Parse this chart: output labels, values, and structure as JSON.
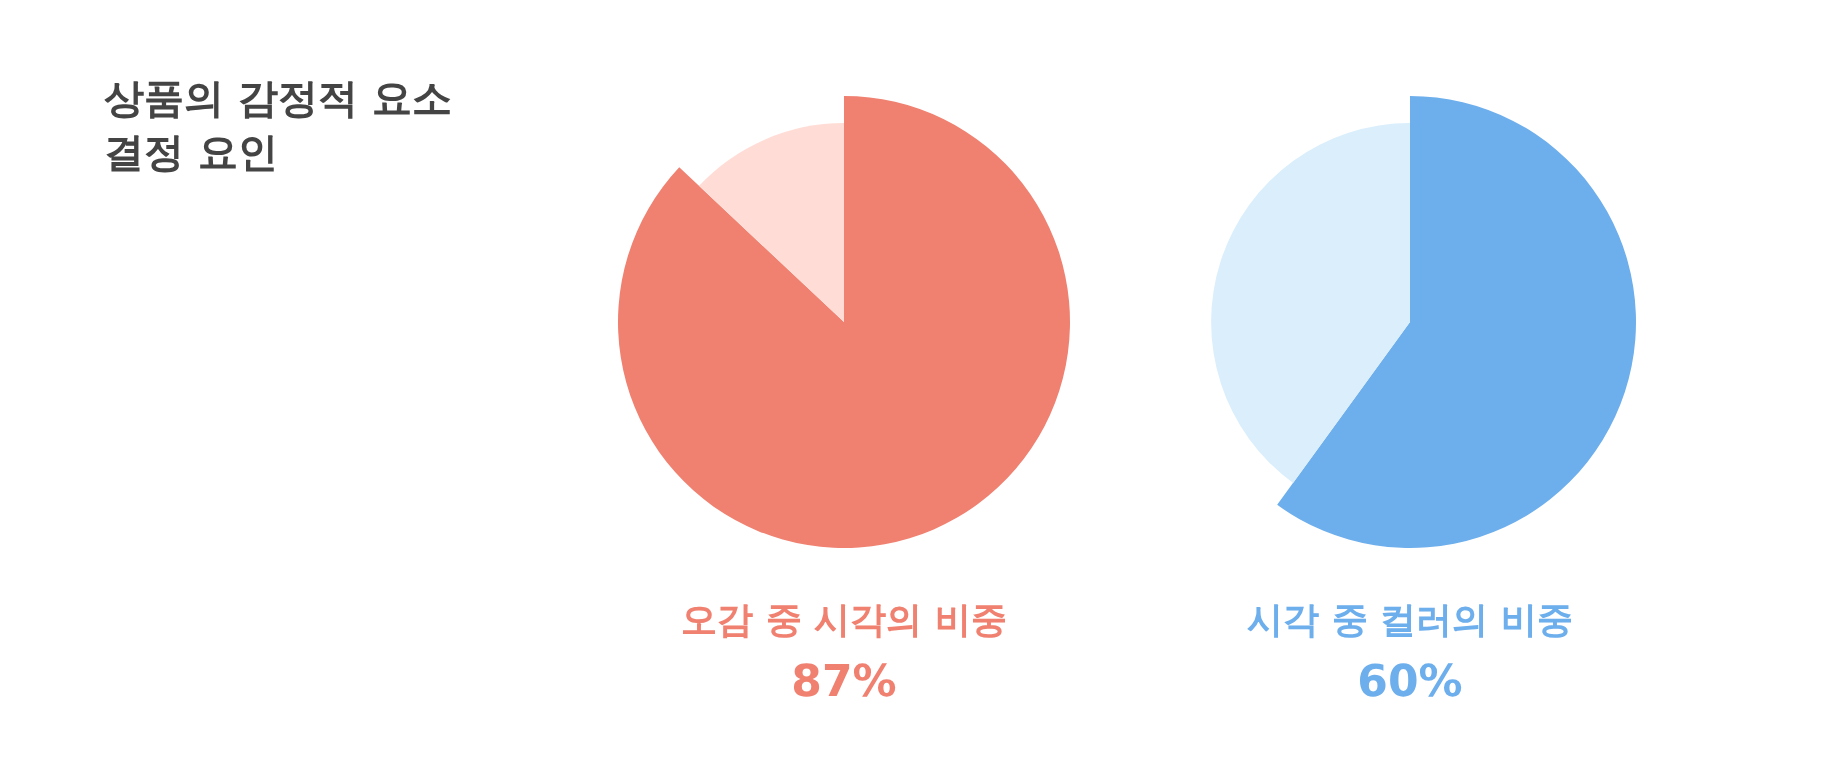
{
  "chart_data": [
    {
      "type": "other",
      "title": "상품의 감정적 요소\n결정 요인"
    },
    {
      "type": "pie",
      "title": "오감 중 시각의 비중",
      "categories": [
        null,
        null
      ],
      "values": [
        87,
        13
      ],
      "colors": [
        "#f08070",
        "#ffddd6"
      ],
      "value_labels": [
        "87%",
        null
      ]
    },
    {
      "type": "pie",
      "title": "시각 중 컬러의 비중",
      "categories": [
        null,
        null
      ],
      "values": [
        60,
        40
      ],
      "colors": [
        "#6daeec",
        "#daeefc"
      ],
      "value_labels": [
        "60%",
        null
      ]
    }
  ]
}
